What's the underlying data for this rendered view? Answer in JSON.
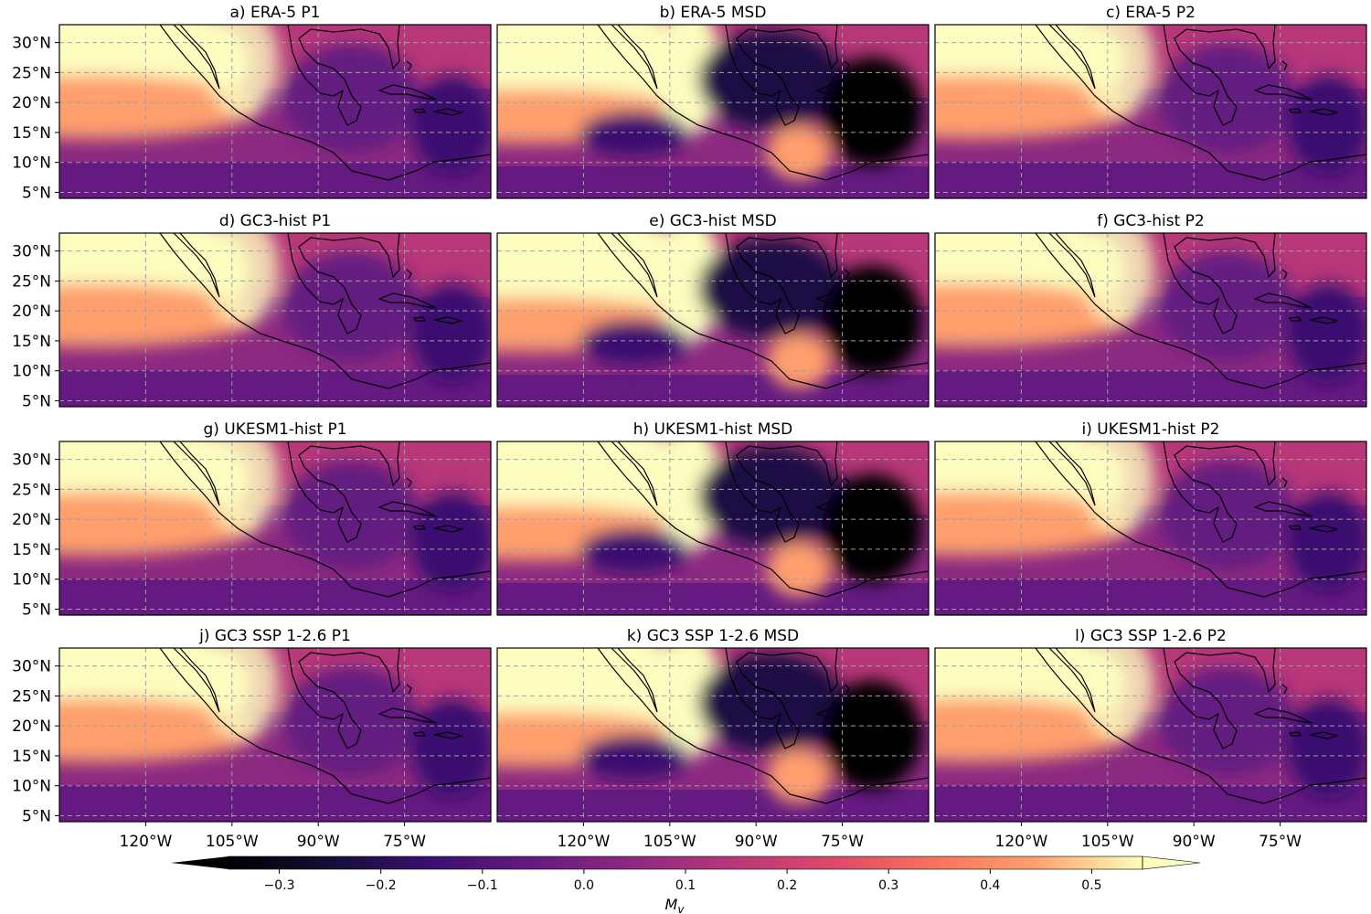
{
  "figure": {
    "panels": [
      {
        "title": "a)  ERA-5 P1",
        "dataset": "ERA-5",
        "period": "P1"
      },
      {
        "title": "b)  ERA-5 MSD",
        "dataset": "ERA-5",
        "period": "MSD"
      },
      {
        "title": "c)  ERA-5 P2",
        "dataset": "ERA-5",
        "period": "P2"
      },
      {
        "title": "d)  GC3-hist P1",
        "dataset": "GC3-hist",
        "period": "P1"
      },
      {
        "title": "e)  GC3-hist MSD",
        "dataset": "GC3-hist",
        "period": "MSD"
      },
      {
        "title": "f)  GC3-hist P2",
        "dataset": "GC3-hist",
        "period": "P2"
      },
      {
        "title": "g)  UKESM1-hist P1",
        "dataset": "UKESM1-hist",
        "period": "P1"
      },
      {
        "title": "h)  UKESM1-hist MSD",
        "dataset": "UKESM1-hist",
        "period": "MSD"
      },
      {
        "title": "i)  UKESM1-hist P2",
        "dataset": "UKESM1-hist",
        "period": "P2"
      },
      {
        "title": "j)  GC3 SSP 1-2.6 P1",
        "dataset": "GC3 SSP 1-2.6",
        "period": "P1"
      },
      {
        "title": "k)  GC3 SSP 1-2.6 MSD",
        "dataset": "GC3 SSP 1-2.6",
        "period": "MSD"
      },
      {
        "title": "l)  GC3 SSP 1-2.6 P2",
        "dataset": "GC3 SSP 1-2.6",
        "period": "P2"
      }
    ],
    "lat_ticks": [
      "30°N",
      "25°N",
      "20°N",
      "15°N",
      "10°N",
      "5°N"
    ],
    "lat_values": [
      30,
      25,
      20,
      15,
      10,
      5
    ],
    "lon_ticks": [
      "120°W",
      "105°W",
      "90°W",
      "75°W"
    ],
    "lon_values": [
      -120,
      -105,
      -90,
      -75
    ],
    "lon_range": [
      -135,
      -60
    ],
    "lat_range": [
      4,
      33
    ],
    "colorbar": {
      "label": "M",
      "label_sub": "v",
      "ticks": [
        "−0.3",
        "−0.2",
        "−0.1",
        "0.0",
        "0.1",
        "0.2",
        "0.3",
        "0.4",
        "0.5"
      ],
      "tick_values": [
        -0.3,
        -0.2,
        -0.1,
        0.0,
        0.1,
        0.2,
        0.3,
        0.4,
        0.5
      ],
      "range": [
        -0.35,
        0.55
      ],
      "colormap": "magma",
      "colors": [
        "#000004",
        "#1b1044",
        "#4f127b",
        "#812581",
        "#b5367a",
        "#e55064",
        "#fb8761",
        "#fec287",
        "#fcfdbf"
      ]
    }
  }
}
